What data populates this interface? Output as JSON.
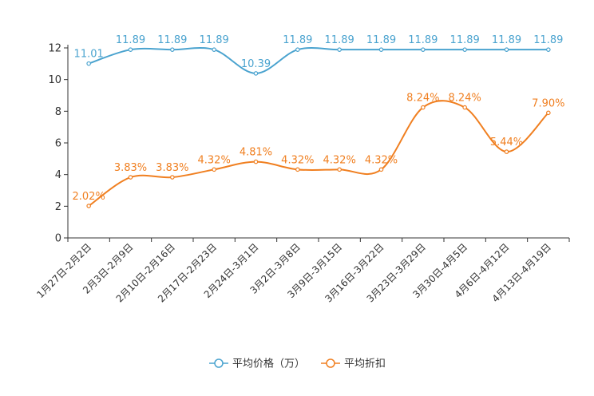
{
  "chart_data": {
    "type": "line",
    "categories": [
      "1月27日-2月2日",
      "2月3日-2月9日",
      "2月10日-2月16日",
      "2月17日-2月23日",
      "2月24日-3月1日",
      "3月2日-3月8日",
      "3月9日-3月15日",
      "3月16日-3月22日",
      "3月23日-3月29日",
      "3月30日-4月5日",
      "4月6日-4月12日",
      "4月13日-4月19日"
    ],
    "series": [
      {
        "name": "平均价格（万）",
        "color": "#4aa3cf",
        "values": [
          11.01,
          11.89,
          11.89,
          11.89,
          10.39,
          11.89,
          11.89,
          11.89,
          11.89,
          11.89,
          11.89,
          11.89
        ],
        "labels": [
          "11.01",
          "11.89",
          "11.89",
          "11.89",
          "10.39",
          "11.89",
          "11.89",
          "11.89",
          "11.89",
          "11.89",
          "11.89",
          "11.89"
        ]
      },
      {
        "name": "平均折扣",
        "color": "#f07f20",
        "values": [
          2.02,
          3.83,
          3.83,
          4.32,
          4.81,
          4.32,
          4.32,
          4.32,
          8.24,
          8.24,
          5.44,
          7.9
        ],
        "labels": [
          "2.02%",
          "3.83%",
          "3.83%",
          "4.32%",
          "4.81%",
          "4.32%",
          "4.32%",
          "4.32%",
          "8.24%",
          "8.24%",
          "5.44%",
          "7.90%"
        ]
      }
    ],
    "yticks": [
      "0",
      "2",
      "4",
      "6",
      "8",
      "10",
      "12"
    ],
    "ylim": [
      0,
      12
    ],
    "title": "",
    "xlabel": "",
    "ylabel": "",
    "legend_position": "bottom-center"
  }
}
